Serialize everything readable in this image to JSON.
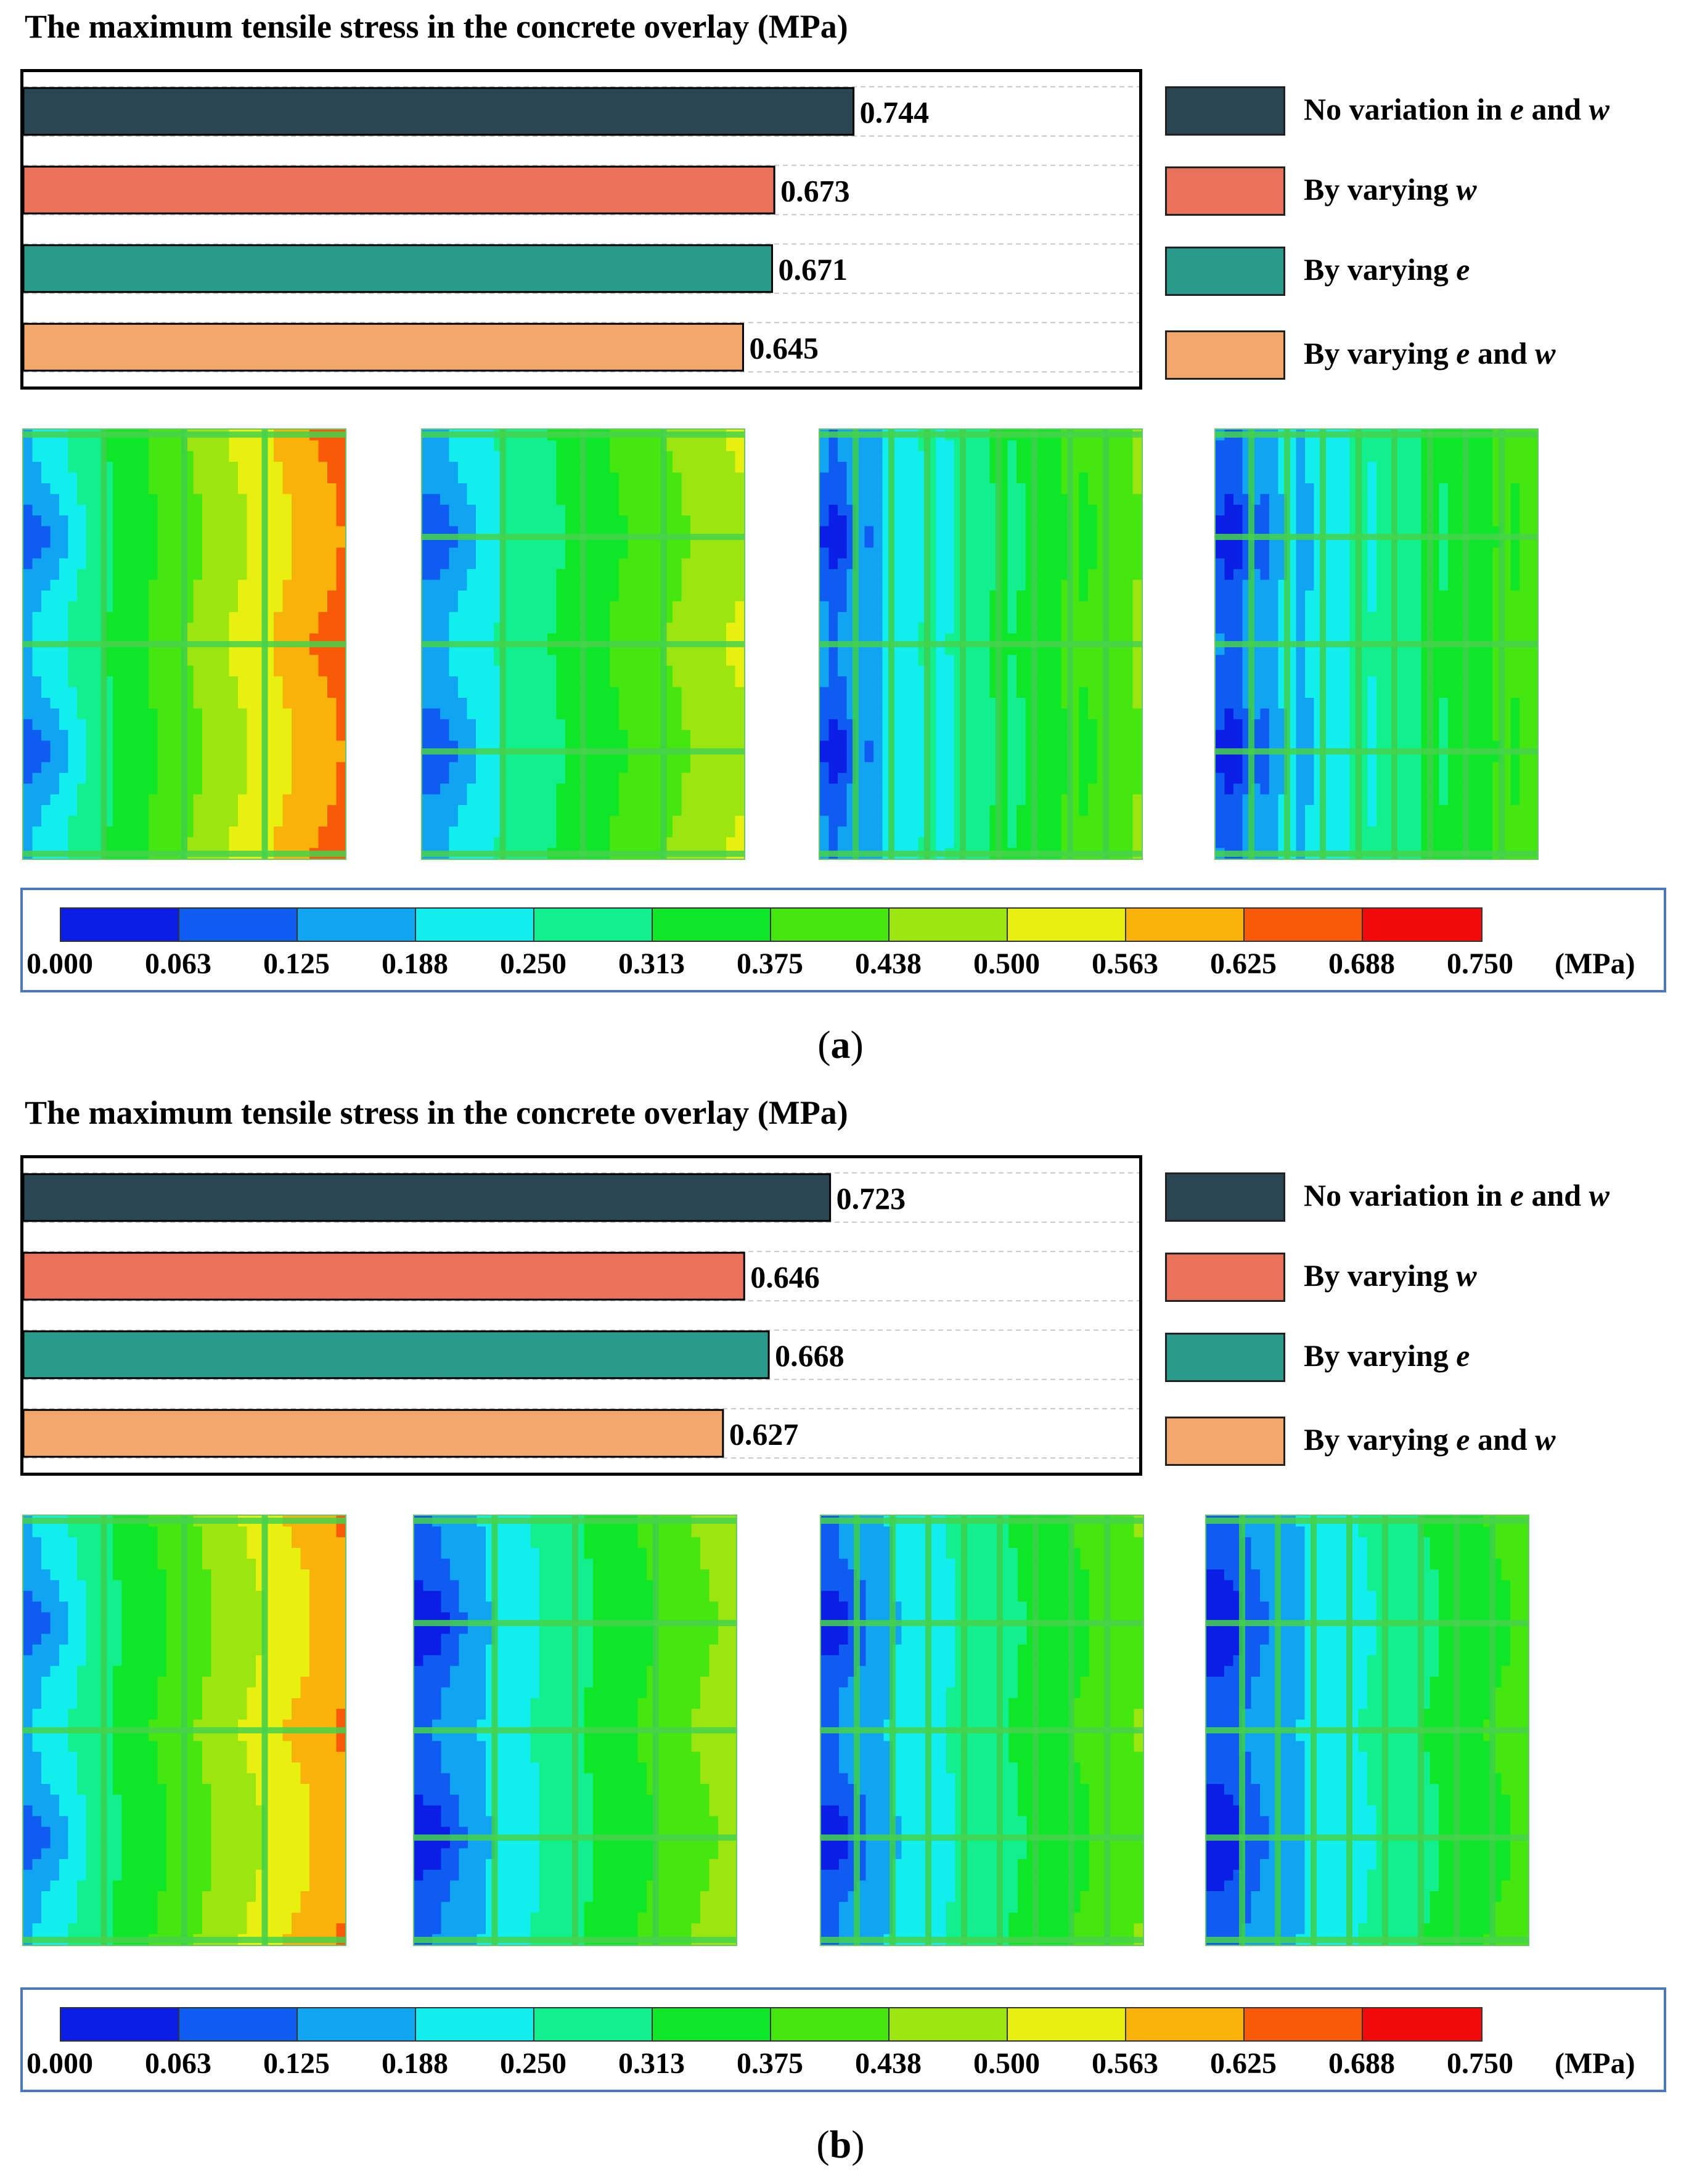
{
  "legend_items": [
    {
      "prefix": "No variation in ",
      "v1": "e",
      "mid": " and ",
      "v2": "w",
      "color": "#2b4653"
    },
    {
      "prefix": "By varying ",
      "v1": "w",
      "mid": "",
      "v2": "",
      "color": "#e8735a"
    },
    {
      "prefix": "By varying ",
      "v1": "e",
      "mid": "",
      "v2": "",
      "color": "#2a9a8d"
    },
    {
      "prefix": "By varying ",
      "v1": "e",
      "mid": " and ",
      "v2": "w",
      "color": "#f2a76b"
    }
  ],
  "colorbar": {
    "colors": [
      "#0a1ee6",
      "#0e5cf0",
      "#11a4f2",
      "#12eeee",
      "#11f08c",
      "#10e628",
      "#46e610",
      "#9be610",
      "#e8f010",
      "#f8b20a",
      "#f85a08",
      "#f20a0a"
    ],
    "ticks": [
      "0.000",
      "0.063",
      "0.125",
      "0.188",
      "0.250",
      "0.313",
      "0.375",
      "0.438",
      "0.500",
      "0.563",
      "0.625",
      "0.688",
      "0.750"
    ],
    "unit": "(MPa)"
  },
  "chart_data": [
    {
      "type": "bar",
      "orientation": "horizontal",
      "title": "The maximum tensile stress in the concrete overlay (MPa)",
      "caption_letter": "a",
      "categories": [
        "No variation in e and w",
        "By varying w",
        "By varying e",
        "By varying e and w"
      ],
      "values": [
        0.744,
        0.673,
        0.671,
        0.645
      ],
      "value_labels": [
        "0.744",
        "0.673",
        "0.671",
        "0.645"
      ],
      "colors": [
        "#2b4653",
        "#e8735a",
        "#2a9a8d",
        "#f2a76b"
      ],
      "xlim": [
        0,
        1.0
      ],
      "grid": true,
      "legend_position": "right"
    },
    {
      "type": "bar",
      "orientation": "horizontal",
      "title": "The maximum tensile stress in the concrete overlay (MPa)",
      "caption_letter": "b",
      "categories": [
        "No variation in e and w",
        "By varying w",
        "By varying e",
        "By varying e and w"
      ],
      "values": [
        0.723,
        0.646,
        0.668,
        0.627
      ],
      "value_labels": [
        "0.723",
        "0.646",
        "0.668",
        "0.627"
      ],
      "colors": [
        "#2b4653",
        "#e8735a",
        "#2a9a8d",
        "#f2a76b"
      ],
      "xlim": [
        0,
        1.0
      ],
      "grid": true,
      "legend_position": "right"
    }
  ]
}
